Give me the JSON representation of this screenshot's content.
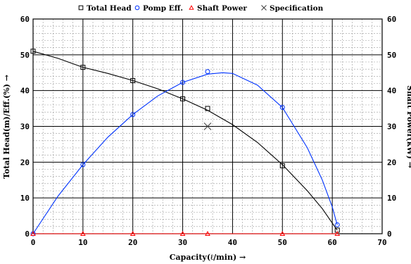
{
  "chart_data": {
    "type": "line",
    "xlabel": "Capacity(ℓ/min) →",
    "ylabel_left": "Total Head(m)/Eff.(%) →",
    "ylabel_right": "Shaft Power(kW) →",
    "xlim": [
      0,
      70
    ],
    "ylim_left": [
      0,
      60
    ],
    "ylim_right": [
      0,
      60
    ],
    "x_ticks": [
      0,
      10,
      20,
      30,
      40,
      50,
      60,
      70
    ],
    "y_ticks": [
      0,
      10,
      20,
      30,
      40,
      50,
      60
    ],
    "grid": true,
    "legend_placement": "top",
    "series": [
      {
        "name": "Total Head",
        "color": "#000000",
        "marker": "square",
        "points": [
          [
            0,
            51
          ],
          [
            10,
            46.5
          ],
          [
            20,
            42.8
          ],
          [
            30,
            37.7
          ],
          [
            35,
            35
          ],
          [
            50,
            19
          ],
          [
            61,
            1
          ]
        ],
        "curve": [
          [
            0,
            51
          ],
          [
            5,
            49
          ],
          [
            10,
            46.5
          ],
          [
            15,
            44.8
          ],
          [
            20,
            42.8
          ],
          [
            25,
            40.5
          ],
          [
            30,
            37.7
          ],
          [
            35,
            34.5
          ],
          [
            40,
            30.5
          ],
          [
            45,
            25.5
          ],
          [
            50,
            19.3
          ],
          [
            55,
            12
          ],
          [
            58,
            7
          ],
          [
            60,
            3
          ],
          [
            61,
            1
          ]
        ]
      },
      {
        "name": "Pomp Eff.",
        "color": "#0033ff",
        "marker": "circle",
        "points": [
          [
            0,
            0
          ],
          [
            10,
            19.3
          ],
          [
            20,
            33.3
          ],
          [
            30,
            42.3
          ],
          [
            35,
            45.3
          ],
          [
            50,
            35.3
          ],
          [
            61,
            2.5
          ]
        ],
        "curve": [
          [
            0,
            0
          ],
          [
            5,
            10.5
          ],
          [
            10,
            19.3
          ],
          [
            15,
            27
          ],
          [
            20,
            33.3
          ],
          [
            25,
            38.5
          ],
          [
            30,
            42.3
          ],
          [
            35,
            44.6
          ],
          [
            38,
            45
          ],
          [
            40,
            44.8
          ],
          [
            45,
            41.5
          ],
          [
            50,
            35.3
          ],
          [
            55,
            24
          ],
          [
            58,
            15
          ],
          [
            60,
            7.5
          ],
          [
            61,
            2.5
          ]
        ]
      },
      {
        "name": "Shaft Power",
        "color": "#ff0000",
        "marker": "triangle",
        "points": [
          [
            0,
            0
          ],
          [
            10,
            0
          ],
          [
            20,
            0
          ],
          [
            30,
            0
          ],
          [
            35,
            0
          ],
          [
            50,
            0
          ],
          [
            61,
            0
          ]
        ],
        "curve": [
          [
            0,
            0
          ],
          [
            61,
            0
          ]
        ]
      },
      {
        "name": "Specification",
        "color": "#444444",
        "marker": "x",
        "points": [
          [
            35,
            30
          ]
        ],
        "curve": []
      }
    ]
  }
}
